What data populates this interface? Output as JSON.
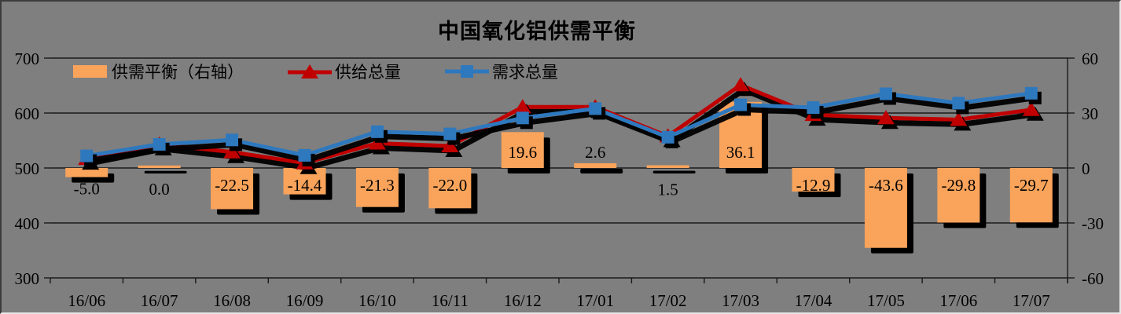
{
  "title": "中国氧化铝供需平衡",
  "colors": {
    "background": "#7f7f7f",
    "bar": "#F9A35B",
    "supply_line": "#C00000",
    "demand_line": "#2E78BE",
    "shadow": "#000000",
    "grid": "#1a1a1a",
    "text": "#000000"
  },
  "legend": {
    "items": [
      {
        "label": "供需平衡（右轴）",
        "swatch": "bar-swatch"
      },
      {
        "label": "供给总量",
        "swatch": "red-triangle-line"
      },
      {
        "label": "需求总量",
        "swatch": "blue-square-line"
      }
    ]
  },
  "chart_data": {
    "type": "combo-bar-line",
    "title": "中国氧化铝供需平衡",
    "categories": [
      "16/06",
      "16/07",
      "16/08",
      "16/09",
      "16/10",
      "16/11",
      "16/12",
      "17/01",
      "17/02",
      "17/03",
      "17/04",
      "17/05",
      "17/06",
      "17/07"
    ],
    "series": [
      {
        "name": "供需平衡（右轴）",
        "type": "bar",
        "axis": "right",
        "values": [
          -5.0,
          0.0,
          -22.5,
          -14.4,
          -21.3,
          -22.0,
          19.6,
          2.6,
          1.5,
          36.1,
          -12.9,
          -43.6,
          -29.8,
          -29.7
        ],
        "labels": [
          "-5.0",
          "0.0",
          "-22.5",
          "-14.4",
          "-21.3",
          "-22.0",
          "19.6",
          "2.6",
          "1.5",
          "36.1",
          "-12.9",
          "-43.6",
          "-29.8",
          "-29.7"
        ],
        "label_pos": [
          "below",
          "below",
          "inside",
          "inside",
          "inside",
          "inside",
          "inside",
          "above",
          "below",
          "inside",
          "inside",
          "inside",
          "inside",
          "inside"
        ]
      },
      {
        "name": "供给总量",
        "type": "line",
        "marker": "triangle",
        "axis": "left",
        "values": [
          517,
          543,
          529,
          509,
          545,
          540,
          611,
          611,
          558,
          651,
          597,
          591,
          588,
          606
        ]
      },
      {
        "name": "需求总量",
        "type": "line",
        "marker": "square",
        "axis": "left",
        "values": [
          522,
          543,
          551,
          523,
          566,
          562,
          591,
          608,
          556,
          615,
          610,
          635,
          618,
          636
        ]
      }
    ],
    "left_axis": {
      "ticks": [
        700,
        600,
        500,
        400,
        300
      ],
      "min": 300,
      "max": 700
    },
    "right_axis": {
      "ticks": [
        60,
        30,
        0,
        -30,
        -60
      ],
      "min": -60,
      "max": 60
    },
    "grid": "horizontal-black",
    "legend_position": "top-left-inside"
  }
}
